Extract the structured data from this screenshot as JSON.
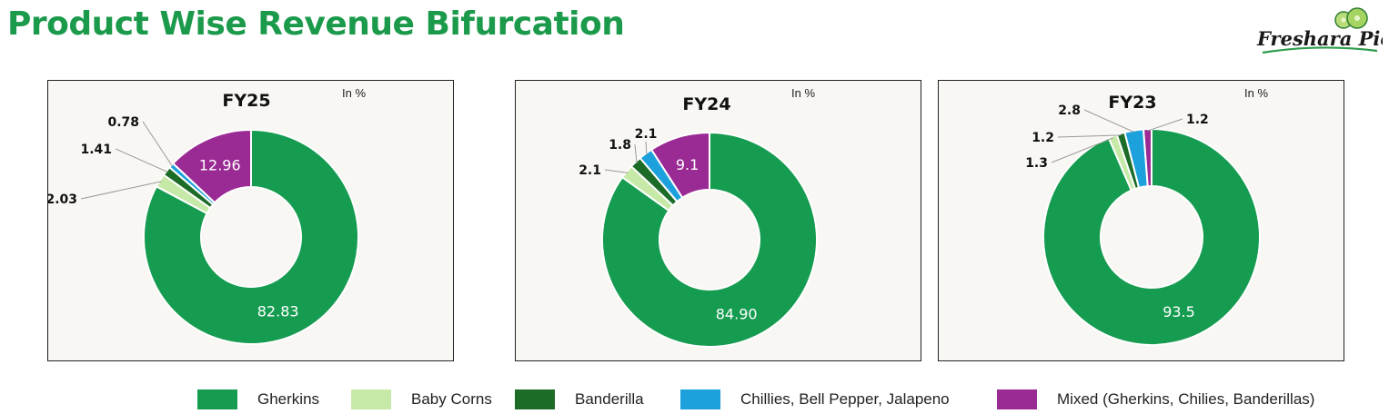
{
  "page_title": "Product Wise Revenue Bifurcation",
  "logo_text": "Freshara Picklz",
  "unit_note": "In %",
  "colors": {
    "gherkins": "#169c50",
    "baby_corns": "#c7e9a8",
    "banderilla": "#1c6b27",
    "chillies": "#1da1dd",
    "mixed": "#9b2b94",
    "title_green": "#1b9a4b"
  },
  "legend": [
    {
      "key": "gherkins",
      "label": "Gherkins"
    },
    {
      "key": "baby_corns",
      "label": "Baby Corns"
    },
    {
      "key": "banderilla",
      "label": "Banderilla"
    },
    {
      "key": "chillies",
      "label": "Chillies, Bell Pepper, Jalapeno"
    },
    {
      "key": "mixed",
      "label": "Mixed (Gherkins, Chilies, Banderillas)"
    }
  ],
  "chart_data": [
    {
      "type": "pie",
      "title": "FY25",
      "unit": "In %",
      "categories": [
        "Gherkins",
        "Baby Corns",
        "Banderilla",
        "Chillies, Bell Pepper, Jalapeno",
        "Mixed (Gherkins, Chilies, Banderillas)"
      ],
      "values": [
        82.83,
        2.03,
        1.41,
        0.78,
        12.96
      ],
      "labels": [
        "82.83",
        "2.03",
        "1.41",
        "0.78",
        "12.96"
      ]
    },
    {
      "type": "pie",
      "title": "FY24",
      "unit": "In %",
      "categories": [
        "Gherkins",
        "Baby Corns",
        "Banderilla",
        "Chillies, Bell Pepper, Jalapeno",
        "Mixed (Gherkins, Chilies, Banderillas)"
      ],
      "values": [
        84.9,
        2.1,
        1.8,
        2.1,
        9.1
      ],
      "labels": [
        "84.90",
        "2.1",
        "1.8",
        "2.1",
        "9.1"
      ]
    },
    {
      "type": "pie",
      "title": "FY23",
      "unit": "In %",
      "categories": [
        "Gherkins",
        "Baby Corns",
        "Banderilla",
        "Chillies, Bell Pepper, Jalapeno",
        "Mixed (Gherkins, Chilies, Banderillas)"
      ],
      "values": [
        93.5,
        1.3,
        1.2,
        2.8,
        1.2
      ],
      "labels": [
        "93.5",
        "1.3",
        "1.2",
        "2.8",
        "1.2"
      ]
    }
  ]
}
